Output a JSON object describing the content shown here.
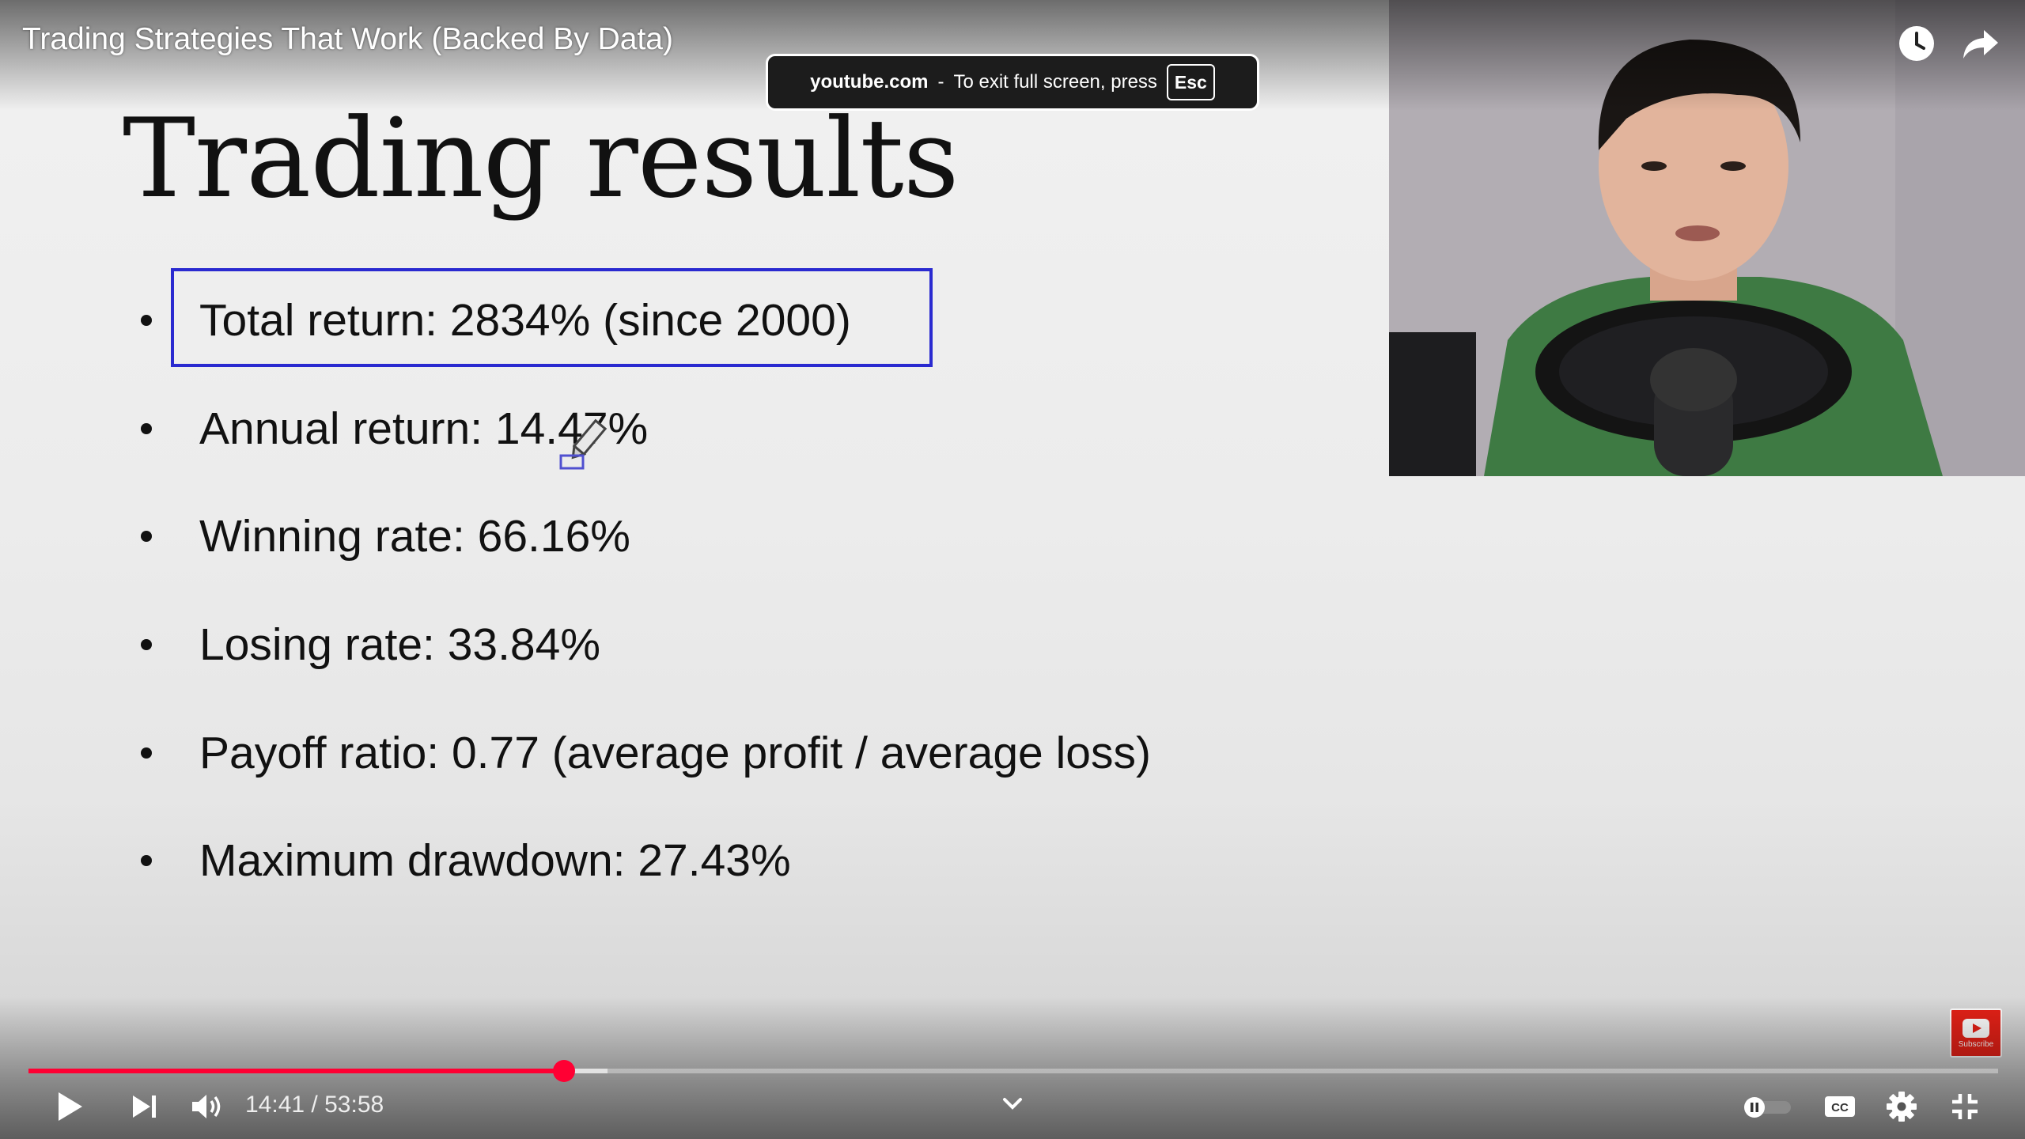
{
  "video": {
    "title": "Trading Strategies That Work (Backed By Data)"
  },
  "toast": {
    "domain": "youtube.com",
    "separator": "-",
    "message": "To exit full screen, press",
    "key": "Esc"
  },
  "slide": {
    "title": "Trading results",
    "bullets": [
      "Total return: 2834% (since 2000)",
      "Annual return: 14.47%",
      "Winning rate: 66.16%",
      "Losing rate: 33.84%",
      "Payoff ratio: 0.77 (average profit / average loss)",
      "Maximum drawdown: 27.43%"
    ]
  },
  "watermark": {
    "label": "Subscribe"
  },
  "controls": {
    "time_current": "14:41",
    "time_separator": "/",
    "time_total": "53:58",
    "progress_fraction": 0.272,
    "buffered_fraction": 0.294,
    "accent_color": "#ff0033",
    "icons": [
      "play-icon",
      "next-icon",
      "volume-icon",
      "chapter-chevron-icon",
      "autoplay-toggle-icon",
      "captions-icon",
      "settings-icon",
      "exit-fullscreen-icon",
      "watch-later-icon",
      "share-icon"
    ]
  }
}
